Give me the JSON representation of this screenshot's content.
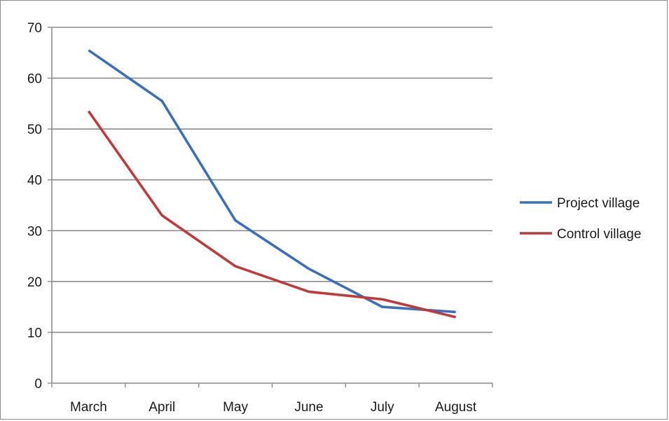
{
  "chart_data": {
    "type": "line",
    "title": "",
    "xlabel": "",
    "ylabel": "",
    "categories": [
      "March",
      "April",
      "May",
      "June",
      "July",
      "August"
    ],
    "ylim": [
      0,
      70
    ],
    "yticks": [
      0,
      10,
      20,
      30,
      40,
      50,
      60,
      70
    ],
    "grid": true,
    "legend_position": "right",
    "series": [
      {
        "name": "Project village",
        "color": "#3a6fba",
        "values": [
          65.5,
          55.5,
          32,
          22.5,
          15,
          14
        ]
      },
      {
        "name": "Control village",
        "color": "#c0393b",
        "values": [
          53.5,
          33,
          23,
          18,
          16.5,
          13
        ]
      }
    ]
  }
}
